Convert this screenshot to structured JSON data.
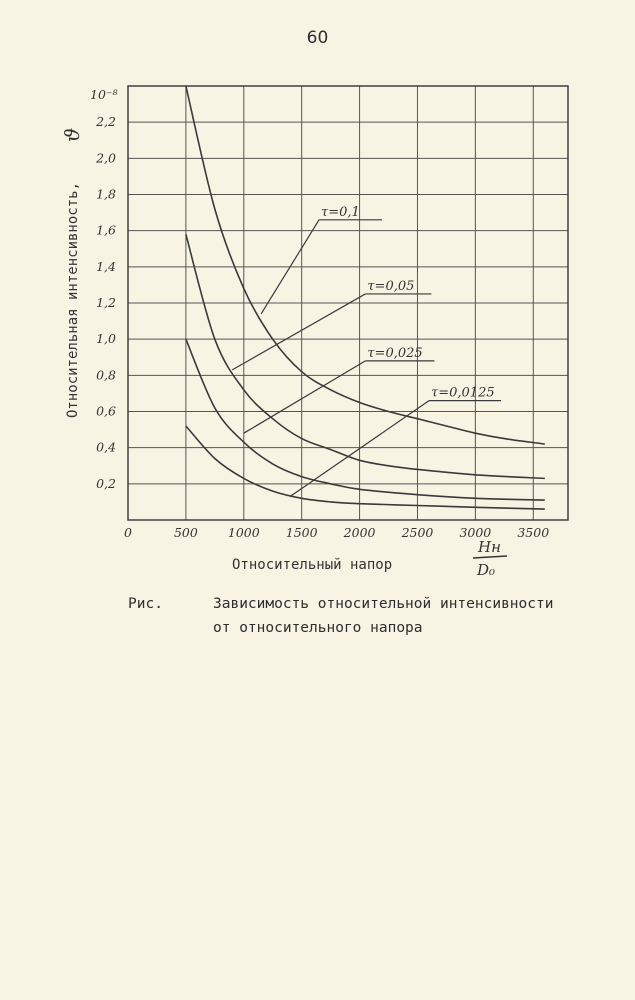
{
  "page_number": "60",
  "caption": {
    "prefix": "Рис.",
    "line1": "Зависимость относительной интенсивности",
    "line2": "от относительного напора"
  },
  "chart_data": {
    "type": "line",
    "ylabel": "Относительная интенсивность,",
    "ylabel_symbol": "ϑ",
    "xlabel": "Относительный напор",
    "xlabel_fraction": {
      "numerator": "Hн",
      "denominator": "D₀"
    },
    "y_multiplier": "10⁻⁸",
    "xlim": [
      0,
      3800
    ],
    "ylim": [
      0,
      2.4
    ],
    "x_ticks": [
      "0",
      "500",
      "1000",
      "1500",
      "2000",
      "2500",
      "3000",
      "3500"
    ],
    "y_ticks": [
      "0,2",
      "0,4",
      "0,6",
      "0,8",
      "1,0",
      "1,2",
      "1,4",
      "1,6",
      "1,8",
      "2,0",
      "2,2"
    ],
    "grid": true,
    "series": [
      {
        "name": "τ=0,1",
        "x": [
          500,
          750,
          1000,
          1250,
          1500,
          1750,
          2000,
          2250,
          2500,
          2750,
          3000,
          3250,
          3600
        ],
        "y": [
          2.4,
          1.72,
          1.28,
          1.0,
          0.82,
          0.72,
          0.65,
          0.6,
          0.56,
          0.52,
          0.48,
          0.45,
          0.42
        ]
      },
      {
        "name": "τ=0,05",
        "x": [
          500,
          750,
          1000,
          1250,
          1500,
          1750,
          2000,
          2250,
          2500,
          3000,
          3600
        ],
        "y": [
          1.58,
          1.0,
          0.72,
          0.56,
          0.45,
          0.39,
          0.33,
          0.3,
          0.28,
          0.25,
          0.23
        ]
      },
      {
        "name": "τ=0,025",
        "x": [
          500,
          750,
          1000,
          1250,
          1500,
          1750,
          2000,
          2500,
          3000,
          3600
        ],
        "y": [
          1.0,
          0.62,
          0.43,
          0.31,
          0.24,
          0.2,
          0.17,
          0.14,
          0.12,
          0.11
        ]
      },
      {
        "name": "τ=0,0125",
        "x": [
          500,
          750,
          1000,
          1250,
          1500,
          1750,
          2000,
          2500,
          3000,
          3600
        ],
        "y": [
          0.52,
          0.34,
          0.23,
          0.16,
          0.12,
          0.1,
          0.09,
          0.08,
          0.07,
          0.06
        ]
      }
    ]
  }
}
